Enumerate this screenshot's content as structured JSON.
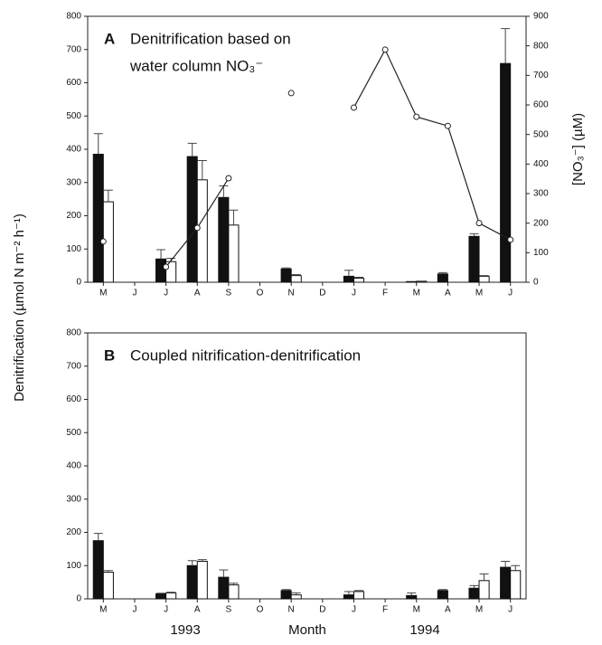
{
  "chart_data": [
    {
      "type": "bar",
      "panel": "A",
      "title": [
        "Denitrification based on",
        "water column NO₃⁻"
      ],
      "ylabel": "Denitrification (µmol N m⁻² h⁻¹)",
      "y2label": "[NO₃⁻] (µM)",
      "categories": [
        "M",
        "J",
        "J",
        "A",
        "S",
        "O",
        "N",
        "D",
        "J",
        "F",
        "M",
        "A",
        "M",
        "J"
      ],
      "ylim": [
        0,
        800
      ],
      "yticks": [
        0,
        100,
        200,
        300,
        400,
        500,
        600,
        700,
        800
      ],
      "y2lim": [
        0,
        900
      ],
      "y2ticks": [
        0,
        100,
        200,
        300,
        400,
        500,
        600,
        700,
        800,
        900
      ],
      "series": [
        {
          "color": "#111111",
          "values": [
            385,
            null,
            70,
            378,
            255,
            null,
            40,
            null,
            18,
            null,
            2,
            25,
            138,
            658
          ],
          "errors": [
            62,
            null,
            28,
            40,
            35,
            null,
            3,
            null,
            18,
            null,
            null,
            4,
            8,
            105
          ]
        },
        {
          "color": "#ffffff",
          "values": [
            242,
            null,
            62,
            308,
            172,
            null,
            20,
            null,
            12,
            null,
            3,
            null,
            18,
            null
          ],
          "errors": [
            35,
            null,
            10,
            58,
            45,
            null,
            3,
            null,
            3,
            null,
            null,
            null,
            2,
            null
          ]
        },
        {
          "type": "line",
          "axis": "y2",
          "color": "#222222",
          "values": [
            138,
            null,
            52,
            184,
            352,
            null,
            640,
            null,
            591,
            787,
            560,
            529,
            200,
            144
          ]
        }
      ]
    },
    {
      "type": "bar",
      "panel": "B",
      "title": [
        "Coupled nitrification-denitrification"
      ],
      "xlabel": "Month",
      "annotations": [
        "1993",
        "1994"
      ],
      "categories": [
        "M",
        "J",
        "J",
        "A",
        "S",
        "O",
        "N",
        "D",
        "J",
        "F",
        "M",
        "A",
        "M",
        "J"
      ],
      "ylim": [
        0,
        800
      ],
      "yticks": [
        0,
        100,
        200,
        300,
        400,
        500,
        600,
        700,
        800
      ],
      "series": [
        {
          "color": "#111111",
          "values": [
            175,
            null,
            15,
            100,
            65,
            null,
            25,
            null,
            12,
            null,
            10,
            25,
            32,
            95
          ],
          "errors": [
            22,
            null,
            2,
            15,
            22,
            null,
            3,
            null,
            10,
            null,
            8,
            3,
            8,
            18
          ]
        },
        {
          "color": "#ffffff",
          "values": [
            80,
            null,
            18,
            113,
            42,
            null,
            12,
            null,
            22,
            null,
            null,
            null,
            55,
            85
          ],
          "errors": [
            5,
            null,
            2,
            5,
            5,
            null,
            6,
            null,
            3,
            null,
            null,
            null,
            20,
            15
          ]
        }
      ]
    }
  ]
}
